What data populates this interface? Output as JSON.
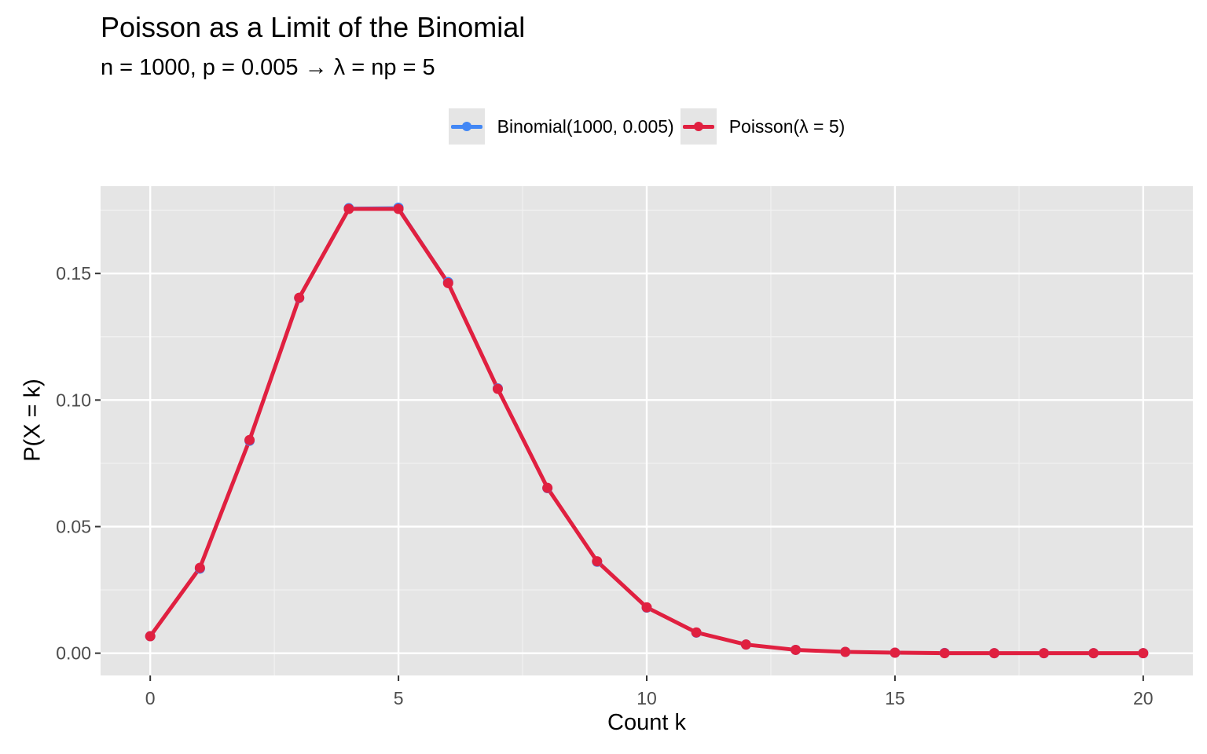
{
  "chart_data": {
    "type": "line",
    "title": "Poisson as a Limit of the Binomial",
    "subtitle": "n = 1000, p = 0.005  →  λ = np = 5",
    "xlabel": "Count k",
    "ylabel": "P(X = k)",
    "xlim": [
      -1,
      21
    ],
    "ylim": [
      -0.0088,
      0.1845
    ],
    "x_ticks": [
      0,
      5,
      10,
      15,
      20
    ],
    "x_tick_labels": [
      "0",
      "5",
      "10",
      "15",
      "20"
    ],
    "y_ticks": [
      0.0,
      0.05,
      0.1,
      0.15
    ],
    "y_tick_labels": [
      "0.00",
      "0.05",
      "0.10",
      "0.15"
    ],
    "grid": true,
    "legend_position": "top",
    "x": [
      0,
      1,
      2,
      3,
      4,
      5,
      6,
      7,
      8,
      9,
      10,
      11,
      12,
      13,
      14,
      15,
      16,
      17,
      18,
      19,
      20
    ],
    "series": [
      {
        "name": "Binomial(1000, 0.005)",
        "color": "#4287f5",
        "values": [
          0.0067,
          0.0334,
          0.0839,
          0.1403,
          0.1758,
          0.176,
          0.1466,
          0.1046,
          0.0652,
          0.0361,
          0.018,
          0.0081,
          0.0034,
          0.0013,
          0.0005,
          0.0002,
          0.0001,
          0.0,
          0.0,
          0.0,
          0.0
        ]
      },
      {
        "name": "Poisson(λ = 5)",
        "color": "#e02040",
        "values": [
          0.0067,
          0.0337,
          0.0842,
          0.1404,
          0.1755,
          0.1755,
          0.1462,
          0.1044,
          0.0653,
          0.0363,
          0.0181,
          0.0082,
          0.0034,
          0.0013,
          0.0005,
          0.0002,
          0.0,
          0.0,
          0.0,
          0.0,
          0.0
        ]
      }
    ]
  }
}
